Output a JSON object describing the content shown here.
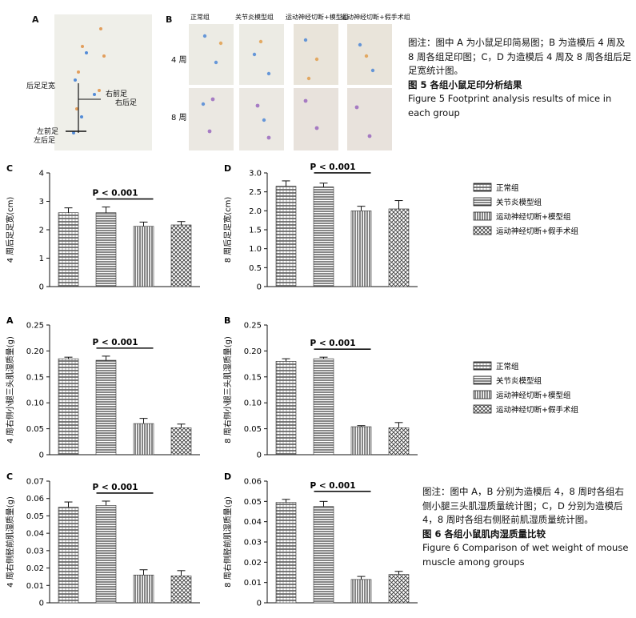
{
  "fig5": {
    "panelA": {
      "letter": "A",
      "labels": [
        "后足足宽",
        "右前足",
        "右后足",
        "左前足",
        "左后足"
      ]
    },
    "panelB": {
      "letter": "B",
      "col_headers": [
        "正常组",
        "关节炎模型组",
        "运动神经切断+模型组",
        "运动神经切断+假手术组"
      ],
      "row_labels": [
        "4 周",
        "8 周"
      ]
    },
    "caption": {
      "note": "图注：图中 A 为小鼠足印简易图；B 为造模后 4 周及 8 周各组足印图；C，D 为造模后 4 周及 8 周各组后足足宽统计图。",
      "title_cn": "图 5 各组小鼠足印分析结果",
      "title_en": "Figure 5 Footprint analysis results of mice in each group"
    }
  },
  "legend_items": [
    "正常组",
    "关节炎模型组",
    "运动神经切断+模型组",
    "运动神经切断+假手术组"
  ],
  "fig6_caption": {
    "note": "图注：图中 A，B 分别为造模后 4，8 周时各组右侧小腿三头肌湿质量统计图；C，D 分别为造模后 4，8 周时各组右侧胫前肌湿质量统计图。",
    "title_cn": "图 6 各组小鼠肌肉湿质量比较",
    "title_en": "Figure 6 Comparison of wet weight of mouse muscle among groups"
  },
  "chart_data": [
    {
      "id": "c5c",
      "letter": "C",
      "type": "bar",
      "ylabel": "4 周后足足宽(cm)",
      "ylim": [
        0,
        4
      ],
      "yticks": [
        "0",
        "1",
        "2",
        "3",
        "4"
      ],
      "values": [
        2.6,
        2.6,
        2.12,
        2.17
      ],
      "errors": [
        0.17,
        0.2,
        0.15,
        0.12
      ],
      "significance": "P < 0.001"
    },
    {
      "id": "c5d",
      "letter": "D",
      "type": "bar",
      "ylabel": "8 周后足足宽(cm)",
      "ylim": [
        0,
        3.0
      ],
      "yticks": [
        "0",
        "0.5",
        "1.0",
        "1.5",
        "2.0",
        "2.5",
        "3.0"
      ],
      "values": [
        2.65,
        2.63,
        2.0,
        2.05
      ],
      "errors": [
        0.14,
        0.1,
        0.12,
        0.22
      ],
      "significance": "P < 0.001"
    },
    {
      "id": "c6a",
      "letter": "A",
      "type": "bar",
      "ylabel": "4 周右侧小腿三头肌湿质量(g)",
      "ylim": [
        0,
        0.25
      ],
      "yticks": [
        "0",
        "0.05",
        "0.10",
        "0.15",
        "0.20",
        "0.25"
      ],
      "values": [
        0.185,
        0.182,
        0.06,
        0.052
      ],
      "errors": [
        0.003,
        0.008,
        0.01,
        0.007
      ],
      "significance": "P < 0.001"
    },
    {
      "id": "c6b",
      "letter": "B",
      "type": "bar",
      "ylabel": "8 周右侧小腿三头肌湿质量(g)",
      "ylim": [
        0,
        0.25
      ],
      "yticks": [
        "0",
        "0.05",
        "0.10",
        "0.15",
        "0.20",
        "0.25"
      ],
      "values": [
        0.18,
        0.185,
        0.054,
        0.052
      ],
      "errors": [
        0.005,
        0.003,
        0.002,
        0.01
      ],
      "significance": "P < 0.001"
    },
    {
      "id": "c6c",
      "letter": "C",
      "type": "bar",
      "ylabel": "4 周右侧胫前肌湿质量(g)",
      "ylim": [
        0,
        0.07
      ],
      "yticks": [
        "0",
        "0.01",
        "0.02",
        "0.03",
        "0.04",
        "0.05",
        "0.06",
        "0.07"
      ],
      "values": [
        0.055,
        0.056,
        0.016,
        0.0155
      ],
      "errors": [
        0.003,
        0.0025,
        0.003,
        0.003
      ],
      "significance": "P < 0.001"
    },
    {
      "id": "c6d",
      "letter": "D",
      "type": "bar",
      "ylabel": "8 周右侧胫前肌湿质量(g)",
      "ylim": [
        0,
        0.06
      ],
      "yticks": [
        "0",
        "0.01",
        "0.02",
        "0.03",
        "0.04",
        "0.05",
        "0.06"
      ],
      "values": [
        0.0495,
        0.0475,
        0.0115,
        0.014
      ],
      "errors": [
        0.0015,
        0.0025,
        0.0015,
        0.0015
      ],
      "significance": "P < 0.001"
    }
  ]
}
